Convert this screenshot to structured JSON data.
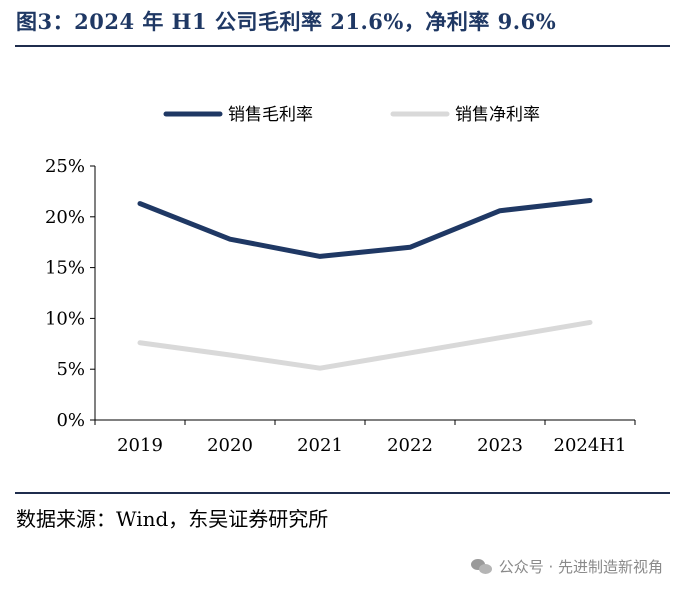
{
  "title": "图3：2024 年 H1 公司毛利率 21.6%，净利率 9.6%",
  "source": "数据来源：Wind，东吴证券研究所",
  "watermark": "公众号 · 先进制造新视角",
  "chart_data": {
    "type": "line",
    "categories": [
      "2019",
      "2020",
      "2021",
      "2022",
      "2023",
      "2024H1"
    ],
    "ylim": [
      0,
      25
    ],
    "yticks": [
      0,
      5,
      10,
      15,
      20,
      25
    ],
    "ytick_labels": [
      "0%",
      "5%",
      "10%",
      "15%",
      "20%",
      "25%"
    ],
    "grid": false,
    "legend_position": "top",
    "series": [
      {
        "name": "销售毛利率",
        "color": "#1f3864",
        "values": [
          21.3,
          17.8,
          16.1,
          17.0,
          20.6,
          21.6
        ]
      },
      {
        "name": "销售净利率",
        "color": "#d9d9d9",
        "values": [
          7.6,
          6.4,
          5.1,
          6.6,
          8.1,
          9.6
        ]
      }
    ]
  }
}
